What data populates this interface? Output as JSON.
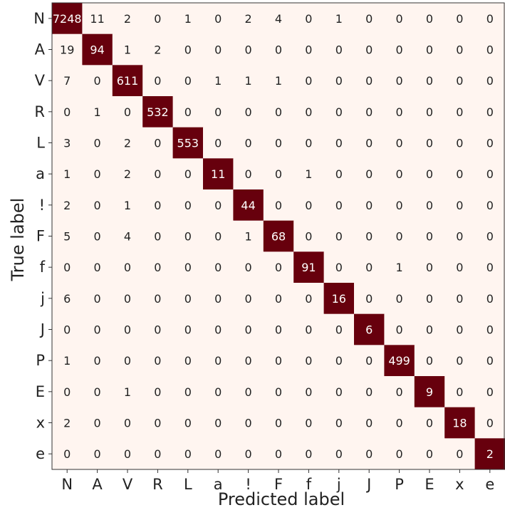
{
  "chart_data": {
    "type": "heatmap",
    "xlabel": "Predicted label",
    "ylabel": "True label",
    "x_categories": [
      "N",
      "A",
      "V",
      "R",
      "L",
      "a",
      "!",
      "F",
      "f",
      "j",
      "J",
      "P",
      "E",
      "x",
      "e"
    ],
    "y_categories": [
      "N",
      "A",
      "V",
      "R",
      "L",
      "a",
      "!",
      "F",
      "f",
      "j",
      "J",
      "P",
      "E",
      "x",
      "e"
    ],
    "matrix": [
      [
        7248,
        11,
        2,
        0,
        1,
        0,
        2,
        4,
        0,
        1,
        0,
        0,
        0,
        0,
        0
      ],
      [
        19,
        94,
        1,
        2,
        0,
        0,
        0,
        0,
        0,
        0,
        0,
        0,
        0,
        0,
        0
      ],
      [
        7,
        0,
        611,
        0,
        0,
        1,
        1,
        1,
        0,
        0,
        0,
        0,
        0,
        0,
        0
      ],
      [
        0,
        1,
        0,
        532,
        0,
        0,
        0,
        0,
        0,
        0,
        0,
        0,
        0,
        0,
        0
      ],
      [
        3,
        0,
        2,
        0,
        553,
        0,
        0,
        0,
        0,
        0,
        0,
        0,
        0,
        0,
        0
      ],
      [
        1,
        0,
        2,
        0,
        0,
        11,
        0,
        0,
        1,
        0,
        0,
        0,
        0,
        0,
        0
      ],
      [
        2,
        0,
        1,
        0,
        0,
        0,
        44,
        0,
        0,
        0,
        0,
        0,
        0,
        0,
        0
      ],
      [
        5,
        0,
        4,
        0,
        0,
        0,
        1,
        68,
        0,
        0,
        0,
        0,
        0,
        0,
        0
      ],
      [
        0,
        0,
        0,
        0,
        0,
        0,
        0,
        0,
        91,
        0,
        0,
        1,
        0,
        0,
        0
      ],
      [
        6,
        0,
        0,
        0,
        0,
        0,
        0,
        0,
        0,
        16,
        0,
        0,
        0,
        0,
        0
      ],
      [
        0,
        0,
        0,
        0,
        0,
        0,
        0,
        0,
        0,
        0,
        6,
        0,
        0,
        0,
        0
      ],
      [
        1,
        0,
        0,
        0,
        0,
        0,
        0,
        0,
        0,
        0,
        0,
        499,
        0,
        0,
        0
      ],
      [
        0,
        0,
        1,
        0,
        0,
        0,
        0,
        0,
        0,
        0,
        0,
        0,
        9,
        0,
        0
      ],
      [
        2,
        0,
        0,
        0,
        0,
        0,
        0,
        0,
        0,
        0,
        0,
        0,
        0,
        18,
        0
      ],
      [
        0,
        0,
        0,
        0,
        0,
        0,
        0,
        0,
        0,
        0,
        0,
        0,
        0,
        0,
        2
      ]
    ],
    "colors": {
      "background_cell": "#fff5f0",
      "highlight_cell": "#67000d",
      "text_on_light": "#222222",
      "text_on_dark": "#ffffff"
    },
    "grid": false,
    "legend": "none"
  }
}
